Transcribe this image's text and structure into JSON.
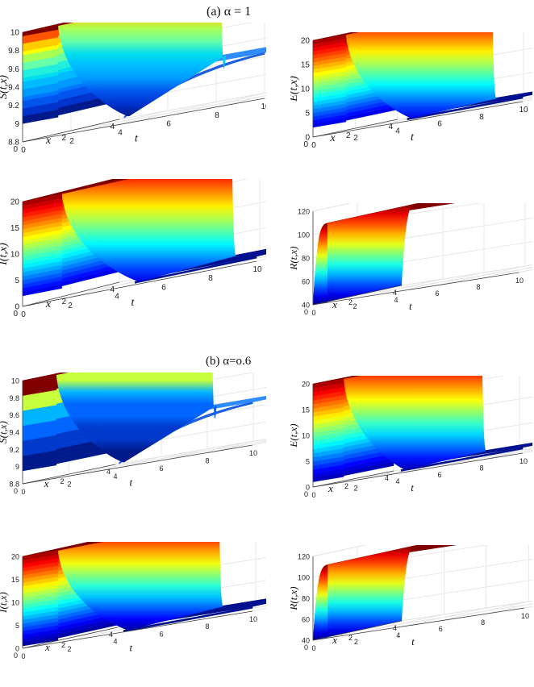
{
  "captions": {
    "a": "(a) α = 1",
    "b": "(b) α=o.6"
  },
  "chart_data": [
    {
      "type": "surface3d",
      "id": "a_S",
      "ylabel": "S(t,x)",
      "xlabel": "t",
      "xlabel2": "x",
      "ylim": [
        8.8,
        10
      ],
      "zticks": [
        "8.8",
        "9",
        "9.2",
        "9.4",
        "9.6",
        "9.8",
        "10"
      ],
      "tticks": [
        "0",
        "2",
        "4",
        "6",
        "8",
        "10"
      ],
      "xticks": [
        "0",
        "2",
        "4"
      ],
      "front_colors": [
        "#001a8c",
        "#0033cc",
        "#0055ee",
        "#0077ff",
        "#0099ff",
        "#00bbff",
        "#00ddee",
        "#22eedd",
        "#66ffaa",
        "#aaff55",
        "#ffff00",
        "#ffcc00",
        "#ff5500",
        "#800000"
      ],
      "front_from": 9.0,
      "front_to": 10.0,
      "jump_to": 9.05,
      "dip_to": 8.88,
      "plateau": 9.3,
      "plateau_color": "#2f8cff"
    },
    {
      "type": "surface3d",
      "id": "a_E",
      "ylabel": "E(t,x)",
      "xlabel": "t",
      "xlabel2": "x",
      "ylim": [
        0,
        20
      ],
      "zticks": [
        "0",
        "5",
        "10",
        "15",
        "20"
      ],
      "tticks": [
        "0",
        "2",
        "4",
        "6",
        "8",
        "10"
      ],
      "xticks": [
        "0",
        "2",
        "4"
      ],
      "front_from": 2,
      "front_to": 20,
      "jump_to": 0.6,
      "plateau": 1.0,
      "plateau_color": "#00108f"
    },
    {
      "type": "surface3d",
      "id": "a_I",
      "ylabel": "I(t,x)",
      "xlabel": "t",
      "xlabel2": "x",
      "ylim": [
        0,
        20
      ],
      "zticks": [
        "0",
        "5",
        "10",
        "15",
        "20"
      ],
      "tticks": [
        "0",
        "2",
        "4",
        "6",
        "8",
        "10"
      ],
      "xticks": [
        "0",
        "2",
        "4"
      ],
      "front_from": 2,
      "front_to": 20,
      "jump_to": 0.6,
      "plateau": 0.9,
      "plateau_color": "#00108f"
    },
    {
      "type": "surface3d",
      "id": "a_R",
      "ylabel": "R(t,x)",
      "xlabel": "t",
      "xlabel2": "x",
      "ylim": [
        40,
        120
      ],
      "zticks": [
        "40",
        "60",
        "80",
        "100",
        "120"
      ],
      "tticks": [
        "0",
        "2",
        "4",
        "6",
        "8",
        "10"
      ],
      "xticks": [
        "0",
        "2",
        "4"
      ],
      "rising": true,
      "front_from": 40,
      "front_to": 104,
      "plateau": 108,
      "plateau_color": "#800000"
    },
    {
      "type": "surface3d",
      "id": "b_S",
      "ylabel": "S(t,x)",
      "xlabel": "t",
      "xlabel2": "x",
      "ylim": [
        8.8,
        10
      ],
      "zticks": [
        "8.8",
        "9",
        "9.2",
        "9.4",
        "9.6",
        "9.8",
        "10"
      ],
      "tticks": [
        "0",
        "2",
        "4",
        "6",
        "8",
        "10"
      ],
      "xticks": [
        "0",
        "2",
        "4"
      ],
      "front_colors": [
        "#001a8c",
        "#003acc",
        "#0066ff",
        "#00b5ff",
        "#c8ff3c",
        "#800000"
      ],
      "front_from": 8.95,
      "front_to": 10.0,
      "jump_to": 9.0,
      "dip_to": 8.86,
      "plateau": 9.3,
      "plateau_color": "#2f8cff"
    },
    {
      "type": "surface3d",
      "id": "b_E",
      "ylabel": "E(t,x)",
      "xlabel": "t",
      "xlabel2": "x",
      "ylim": [
        0,
        20
      ],
      "zticks": [
        "0",
        "5",
        "10",
        "15",
        "20"
      ],
      "tticks": [
        "0",
        "2",
        "4",
        "6",
        "8",
        "10"
      ],
      "xticks": [
        "0",
        "2",
        "4"
      ],
      "front_from": 1,
      "front_to": 20,
      "jump_to": 0.6,
      "plateau": 1.1,
      "plateau_color": "#00108f"
    },
    {
      "type": "surface3d",
      "id": "b_I",
      "ylabel": "I(t,x)",
      "xlabel": "t",
      "xlabel2": "x",
      "ylim": [
        0,
        20
      ],
      "zticks": [
        "0",
        "5",
        "10",
        "15",
        "20"
      ],
      "tticks": [
        "0",
        "2",
        "4",
        "6",
        "8",
        "10"
      ],
      "xticks": [
        "0",
        "2",
        "4"
      ],
      "front_from": 0.5,
      "front_to": 20,
      "jump_to": 0.4,
      "plateau": 1.0,
      "plateau_color": "#00108f"
    },
    {
      "type": "surface3d",
      "id": "b_R",
      "ylabel": "R(t,x)",
      "xlabel": "t",
      "xlabel2": "x",
      "ylim": [
        40,
        120
      ],
      "zticks": [
        "40",
        "60",
        "80",
        "100",
        "120"
      ],
      "tticks": [
        "0",
        "2",
        "4",
        "6",
        "8",
        "10"
      ],
      "xticks": [
        "0",
        "2",
        "4"
      ],
      "rising": true,
      "front_from": 40,
      "front_to": 106,
      "plateau": 110,
      "plateau_color": "#800000"
    }
  ]
}
